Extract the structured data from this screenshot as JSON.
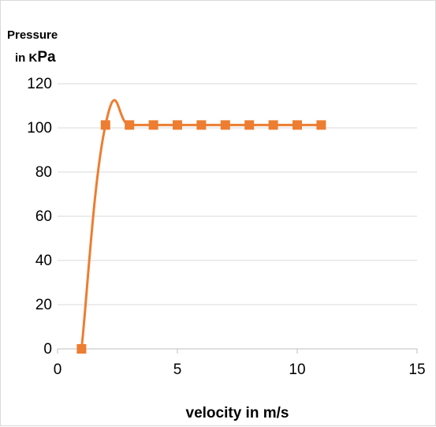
{
  "chart_data": {
    "type": "line",
    "title": "",
    "xlabel": "velocity in m/s",
    "ylabel_line1": "Pressure",
    "ylabel_line2_prefix": "in K",
    "ylabel_line2_unit": "Pa",
    "xlim": [
      0,
      15
    ],
    "ylim": [
      0,
      120
    ],
    "xticks": [
      0,
      5,
      10,
      15
    ],
    "yticks": [
      0,
      20,
      40,
      60,
      80,
      100,
      120
    ],
    "grid": "horizontal",
    "legend": "none",
    "series": [
      {
        "x": [
          1,
          2,
          3,
          4,
          5,
          6,
          7,
          8,
          9,
          10,
          11
        ],
        "values": [
          0,
          101.3,
          101.3,
          101.3,
          101.3,
          101.3,
          101.3,
          101.3,
          101.3,
          101.3,
          101.3
        ],
        "color": "#ED7D31",
        "marker": "square",
        "smooth": true
      }
    ]
  }
}
